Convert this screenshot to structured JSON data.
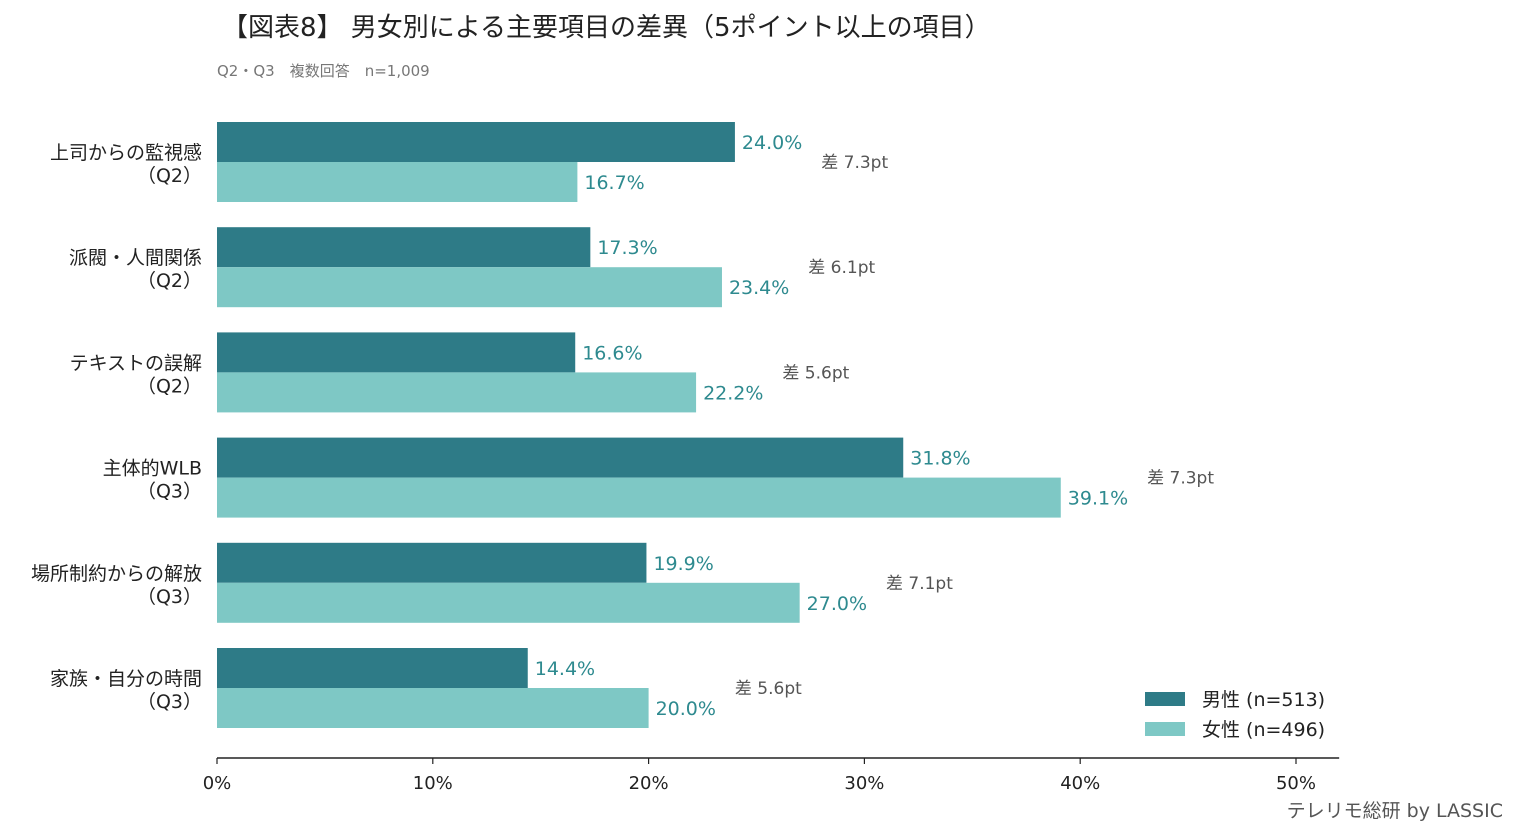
{
  "chart_data": {
    "type": "bar",
    "orientation": "horizontal",
    "title": "【図表8】 男女別による主要項目の差異（5ポイント以上の項目）",
    "subtitle": "Q2・Q3　複数回答　n=1,009",
    "categories": [
      [
        "上司からの監視感",
        "（Q2）"
      ],
      [
        "派閥・人間関係",
        "（Q2）"
      ],
      [
        "テキストの誤解",
        "（Q2）"
      ],
      [
        "主体的WLB",
        "（Q3）"
      ],
      [
        "場所制約からの解放",
        "（Q3）"
      ],
      [
        "家族・自分の時間",
        "（Q3）"
      ]
    ],
    "series": [
      {
        "name": "男性 (n=513)",
        "color": "#2e7b87",
        "values": [
          24.0,
          17.3,
          16.6,
          31.8,
          19.9,
          14.4
        ]
      },
      {
        "name": "女性 (n=496)",
        "color": "#7ec8c5",
        "values": [
          16.7,
          23.4,
          22.2,
          39.1,
          27.0,
          20.0
        ]
      }
    ],
    "value_labels": [
      [
        "24.0%",
        "17.3%",
        "16.6%",
        "31.8%",
        "19.9%",
        "14.4%"
      ],
      [
        "16.7%",
        "23.4%",
        "22.2%",
        "39.1%",
        "27.0%",
        "20.0%"
      ]
    ],
    "value_label_color": "#2e8a8f",
    "annotations": [
      "差 7.3pt",
      "差 6.1pt",
      "差 5.6pt",
      "差 7.3pt",
      "差 7.1pt",
      "差 5.6pt"
    ],
    "xlim": [
      0,
      52
    ],
    "xticks": [
      0,
      10,
      20,
      30,
      40,
      50
    ],
    "xtick_labels": [
      "0%",
      "10%",
      "20%",
      "30%",
      "40%",
      "50%"
    ],
    "grid": false,
    "legend_position": "bottom-right",
    "credit": "テレリモ総研 by LASSIC"
  }
}
